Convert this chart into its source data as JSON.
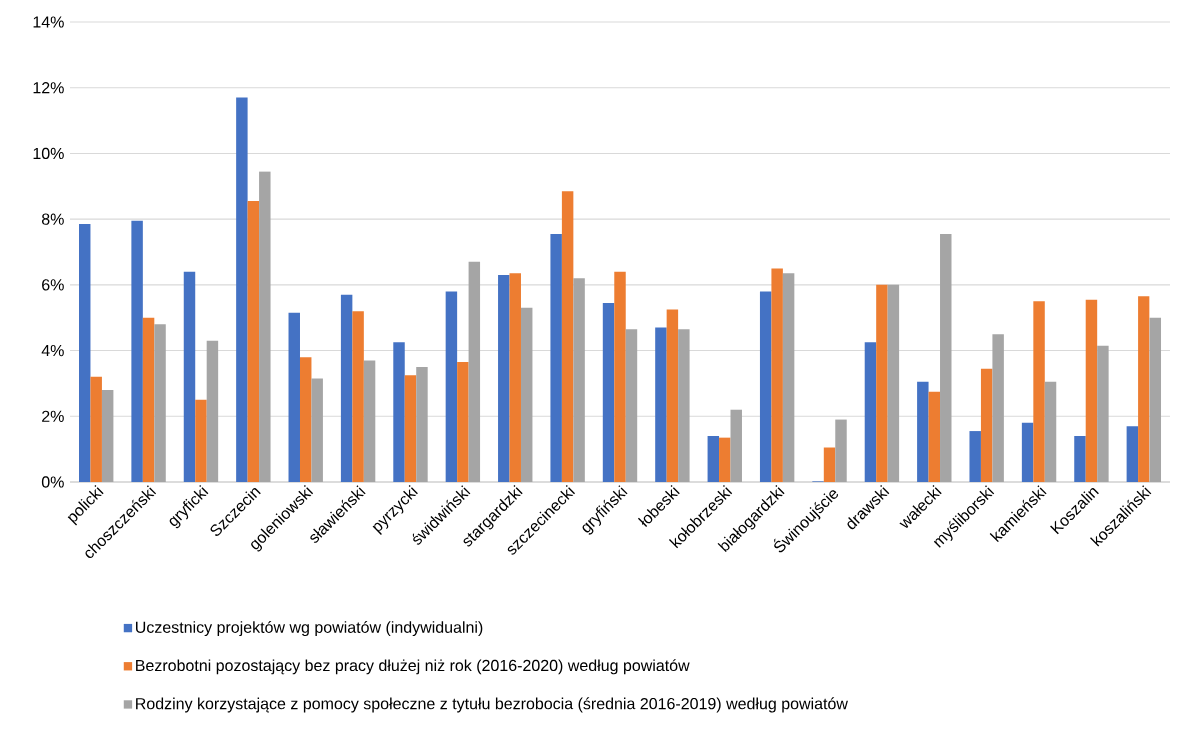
{
  "chart_data": {
    "type": "bar",
    "categories": [
      "policki",
      "choszczeński",
      "gryficki",
      "Szczecin",
      "goleniowski",
      "sławieński",
      "pyrzycki",
      "świdwiński",
      "stargardzki",
      "szczecinecki",
      "gryfiński",
      "łobeski",
      "kołobrzeski",
      "białogardzki",
      "Świnoujście",
      "drawski",
      "wałecki",
      "myśliborski",
      "kamieński",
      "Koszalin",
      "koszaliński"
    ],
    "series": [
      {
        "name": "Uczestnicy projektów wg powiatów (indywidualni)",
        "color": "#4472c4",
        "values": [
          7.85,
          7.95,
          6.4,
          11.7,
          5.15,
          5.7,
          4.25,
          5.8,
          6.3,
          7.55,
          5.45,
          4.7,
          1.4,
          5.8,
          0.02,
          4.25,
          3.05,
          1.55,
          1.8,
          1.4,
          1.7
        ]
      },
      {
        "name": "Bezrobotni pozostający bez pracy dłużej niż rok (2016-2020) według powiatów",
        "color": "#ed7d31",
        "values": [
          3.2,
          5.0,
          2.5,
          8.55,
          3.8,
          5.2,
          3.25,
          3.65,
          6.35,
          8.85,
          6.4,
          5.25,
          1.35,
          6.5,
          1.05,
          6.0,
          2.75,
          3.45,
          5.5,
          5.55,
          5.65
        ]
      },
      {
        "name": "Rodziny korzystające z pomocy społeczne z tytułu bezrobocia (średnia 2016-2019) według powiatów",
        "color": "#a5a5a5",
        "values": [
          2.8,
          4.8,
          4.3,
          9.45,
          3.15,
          3.7,
          3.5,
          6.7,
          5.3,
          6.2,
          4.65,
          4.65,
          2.2,
          6.35,
          1.9,
          6.0,
          7.55,
          4.5,
          3.05,
          4.15,
          5.0
        ]
      }
    ],
    "ylim": [
      0,
      14
    ],
    "yticks": [
      {
        "value": 0,
        "label": "0%"
      },
      {
        "value": 2,
        "label": "2%"
      },
      {
        "value": 4,
        "label": "4%"
      },
      {
        "value": 6,
        "label": "6%"
      },
      {
        "value": 8,
        "label": "8%"
      },
      {
        "value": 10,
        "label": "10%"
      },
      {
        "value": 12,
        "label": "12%"
      },
      {
        "value": 14,
        "label": "14%"
      }
    ],
    "grid": "y",
    "legend": "bottom"
  }
}
